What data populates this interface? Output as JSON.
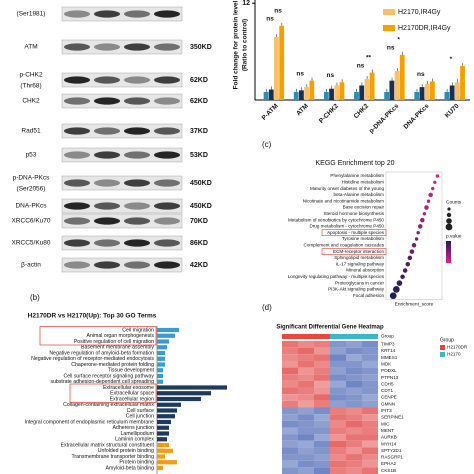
{
  "blot": {
    "rows": [
      {
        "sublabel": "(Ser1981)"
      },
      {
        "label": "ATM",
        "size": "350KD"
      },
      {
        "label": "p-CHK2",
        "sublabel": "(Thr68)",
        "size": "62KD"
      },
      {
        "label": "CHK2",
        "size": "62KD"
      },
      {
        "label": "Rad51",
        "size": "37KD"
      },
      {
        "label": "p53",
        "size": "53KD"
      },
      {
        "label": "p-DNA-PKcs",
        "sublabel": "(Ser2056)",
        "size": "450KD"
      },
      {
        "label": "DNA-PKcs",
        "size": "450KD"
      },
      {
        "label": "XRCC6/Ku70",
        "size": "70KD"
      },
      {
        "label": "XRCC5/Ku80",
        "size": "86KD"
      },
      {
        "label": "β-actin",
        "size": "42KD"
      }
    ]
  },
  "chart_data": [
    {
      "type": "bar",
      "ylabel": "Fold change for protein level",
      "ylabel2": "(Ratio to control)",
      "categories": [
        "P-ATM",
        "ATM",
        "P-CHK2",
        "CHK2",
        "p-DNA-PKcs",
        "DNA-PKcs",
        "KU70"
      ],
      "series": [
        {
          "color": "#2a8fb0",
          "values": [
            1,
            1,
            1,
            1,
            1,
            1,
            1
          ]
        },
        {
          "color": "#1d2f4f",
          "values": [
            1.3,
            1.2,
            1.4,
            1.8,
            2.4,
            1.6,
            1.8
          ]
        },
        {
          "name": "H2170,IR4Gy",
          "color": "#f9c06a",
          "values": [
            7.8,
            1.6,
            1.8,
            2.6,
            3.6,
            2.0,
            2.2
          ]
        },
        {
          "name": "H2170DR,IR4Gy",
          "color": "#f5a000",
          "values": [
            9.2,
            2.4,
            2.2,
            3.4,
            5.6,
            2.3,
            4.2
          ]
        }
      ],
      "significance": [
        [
          "ns",
          "ns"
        ],
        [
          "ns"
        ],
        [
          "ns"
        ],
        [
          "ns",
          "**"
        ],
        [
          "ns",
          "*"
        ],
        [
          "ns"
        ],
        [
          "*"
        ]
      ],
      "ylim": [
        0,
        12.4
      ],
      "yticks": [
        12
      ]
    },
    {
      "type": "barh",
      "panel": "(b)",
      "title": "H2170DR vs H2170(Up): Top 30 GO Terms",
      "categories": [
        "Cell migration",
        "Animal organ morphogenesis",
        "Positive regulation of cell migration",
        "Basement membrane assembly",
        "Negative regulation of amyloid-beta formation",
        "Negative regulation of receptor-mediated endocytosis",
        "Chaperone-mediated protein folding",
        "Tissue development",
        "Cell surface receptor signaling pathway",
        "substrate adhesion-dependent cell spreading",
        "Extracellular exosome",
        "Extracellular space",
        "Extracellular region",
        "Collagen-containing extracellular matrix",
        "Cell surface",
        "Cell junction",
        "Integral component of endoplasmic reticulum membrane",
        "Adherens junction",
        "Lamellipodium",
        "Laminin complex",
        "Extracellular matrix structural constituent",
        "Unfolded protein binding",
        "Transmembrane transporter binding",
        "Protein binding",
        "Amyloid-beta binding"
      ],
      "values": [
        11,
        9,
        6,
        5,
        4,
        4,
        4,
        3,
        3,
        3,
        35,
        27,
        22,
        12,
        10,
        9,
        7,
        6,
        6,
        5,
        6,
        8,
        4,
        10,
        3
      ],
      "colors": [
        "#3a9bd5",
        "#3a9bd5",
        "#3a9bd5",
        "#3a9bd5",
        "#3a9bd5",
        "#3a9bd5",
        "#3a9bd5",
        "#3a9bd5",
        "#3a9bd5",
        "#3a9bd5",
        "#1e3a5f",
        "#1e3a5f",
        "#1e3a5f",
        "#1e3a5f",
        "#1e3a5f",
        "#1e3a5f",
        "#1e3a5f",
        "#1e3a5f",
        "#1e3a5f",
        "#1e3a5f",
        "#f39c12",
        "#f39c12",
        "#f39c12",
        "#f39c12",
        "#f39c12"
      ],
      "xlim": [
        0,
        40
      ]
    },
    {
      "type": "scatter",
      "panel": "(c)",
      "title": "KEGG Enrichment top 20",
      "xlabel": "Enrichment_score",
      "size_title": "Counts",
      "color_title": "p.value",
      "categories": [
        "Phenylalanine metabolism",
        "Histidine metabolism",
        "Maturity onset diabetes of the young",
        "beta-Alanine metabolism",
        "Nicotinate and nicotinamide metabolism",
        "Base excision repair",
        "Steroid hormone biosynthesis",
        "Metabolism of xenobiotics by cytochrome P450",
        "Drug metabolism - cytochrome P450",
        "Apoptosis - multiple species",
        "Tyrosine metabolism",
        "Complement and coagulation cascades",
        "ECM-receptor interaction",
        "Sphingolipid metabolism",
        "IL-17 signaling pathway",
        "Mineral absorption",
        "Longevity regulating pathway - multiple species",
        "Proteoglycans in cancer",
        "PI3K-Akt signaling pathway",
        "Focal adhesion"
      ],
      "x": [
        0.95,
        0.9,
        0.86,
        0.82,
        0.78,
        0.74,
        0.7,
        0.66,
        0.62,
        0.58,
        0.55,
        0.5,
        0.46,
        0.42,
        0.38,
        0.33,
        0.28,
        0.22,
        0.16,
        0.1
      ],
      "counts": [
        2,
        2,
        2,
        3,
        2,
        3,
        2,
        3,
        3,
        2,
        2,
        3,
        3,
        3,
        3,
        3,
        3,
        4,
        5,
        5
      ],
      "xlim": [
        0,
        1
      ]
    },
    {
      "type": "heatmap",
      "panel": "(d)",
      "title": "Significant Differential Gene Heatmap",
      "group_title": "Group",
      "groups": [
        {
          "name": "H2170DR",
          "color": "#e8473f"
        },
        {
          "name": "H2170",
          "color": "#3cb7c4"
        }
      ],
      "rows": [
        "TIMP3",
        "KRT14",
        "MMES1",
        "MDK",
        "PODXL",
        "PTPN13",
        "CDH5",
        "CDT1",
        "CENPE",
        "GMNN",
        "IFIT3",
        "SERPINE1",
        "MIC",
        "MENT",
        "AURKB",
        "MYH14",
        "SPTY2D1",
        "RASGRP1",
        "EPHA2",
        "CKS1B"
      ],
      "values": [
        [
          1.3,
          1.1,
          1.2,
          -1.2,
          -1.1,
          -1.3
        ],
        [
          1.2,
          1.4,
          1.0,
          -1.1,
          -1.3,
          -1.2
        ],
        [
          1.1,
          1.2,
          1.3,
          -1.4,
          -1.0,
          -1.2
        ],
        [
          1.0,
          1.3,
          1.1,
          -1.2,
          -1.2,
          -1.0
        ],
        [
          1.4,
          1.0,
          1.2,
          -1.1,
          -1.3,
          -1.2
        ],
        [
          1.2,
          1.1,
          1.3,
          -1.3,
          -1.2,
          -1.1
        ],
        [
          1.1,
          1.3,
          0.9,
          -1.0,
          -1.4,
          -1.2
        ],
        [
          1.3,
          1.2,
          1.0,
          -1.2,
          -1.1,
          -1.2
        ],
        [
          1.0,
          1.1,
          1.4,
          -1.3,
          -1.2,
          -1.0
        ],
        [
          1.2,
          0.9,
          1.2,
          -1.1,
          -1.2,
          -1.1
        ],
        [
          -1.2,
          -1.1,
          -1.3,
          1.2,
          1.1,
          1.3
        ],
        [
          -1.1,
          -1.3,
          -1.0,
          1.3,
          1.2,
          1.0
        ],
        [
          -1.3,
          -1.2,
          -1.1,
          1.1,
          1.4,
          1.2
        ],
        [
          -1.0,
          -1.2,
          -1.2,
          1.2,
          1.1,
          1.2
        ],
        [
          -1.2,
          -1.4,
          -1.0,
          1.0,
          1.3,
          1.3
        ],
        [
          -1.1,
          -1.0,
          -1.3,
          1.4,
          1.2,
          0.9
        ],
        [
          -1.3,
          -1.1,
          -1.2,
          1.2,
          1.0,
          1.3
        ],
        [
          -1.2,
          -1.2,
          -1.1,
          1.1,
          1.3,
          1.1
        ],
        [
          -1.0,
          -1.3,
          -1.2,
          1.3,
          1.2,
          1.0
        ],
        [
          -1.2,
          -1.1,
          -1.4,
          1.2,
          1.1,
          1.3
        ]
      ],
      "zlim": [
        -2,
        2
      ]
    }
  ]
}
